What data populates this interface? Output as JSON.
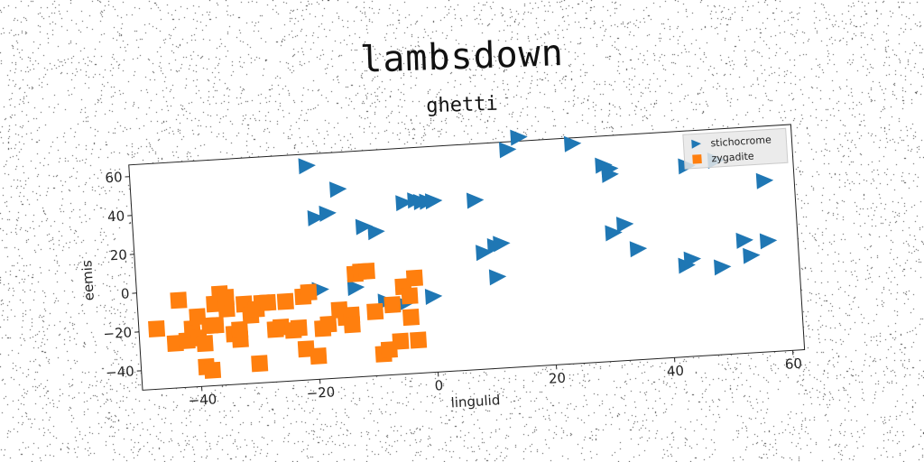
{
  "title": "lambsdown",
  "chart_data": {
    "type": "scatter",
    "title": "ghetti",
    "xlabel": "lingulid",
    "ylabel": "eemis",
    "xlim": [
      -50,
      62
    ],
    "ylim": [
      -50,
      66
    ],
    "xticks": [
      -40,
      -20,
      0,
      20,
      40,
      60
    ],
    "yticks": [
      -40,
      -20,
      0,
      20,
      40,
      60
    ],
    "grid": false,
    "legend_position": "top-right",
    "series": [
      {
        "name": "stichocrome",
        "marker": "triangle-right",
        "color": "#1f77b4",
        "points": [
          [
            -20,
            60
          ],
          [
            -15,
            47
          ],
          [
            -19,
            33
          ],
          [
            -17,
            35
          ],
          [
            -11,
            27
          ],
          [
            -9,
            24
          ],
          [
            -4,
            38
          ],
          [
            -2,
            39
          ],
          [
            -1,
            38
          ],
          [
            0,
            38
          ],
          [
            1,
            38
          ],
          [
            8,
            37
          ],
          [
            9,
            10
          ],
          [
            11,
            13
          ],
          [
            12,
            14
          ],
          [
            14,
            62
          ],
          [
            16,
            68
          ],
          [
            25,
            63
          ],
          [
            30,
            51
          ],
          [
            31,
            49
          ],
          [
            31,
            46
          ],
          [
            31,
            16
          ],
          [
            33,
            20
          ],
          [
            35,
            7
          ],
          [
            44,
            48
          ],
          [
            49,
            50
          ],
          [
            57,
            38
          ],
          [
            43,
            -3
          ],
          [
            44,
            0
          ],
          [
            49,
            -5
          ],
          [
            53,
            8
          ],
          [
            54,
            0
          ],
          [
            57,
            7
          ],
          [
            -19,
            -4
          ],
          [
            -13,
            -4
          ],
          [
            11,
            -3
          ],
          [
            0,
            -11
          ],
          [
            -8,
            -12
          ],
          [
            -5,
            -14
          ]
        ]
      },
      {
        "name": "zygadite",
        "marker": "square",
        "color": "#ff7f0e",
        "points": [
          [
            -47,
            -19
          ],
          [
            -44,
            -27
          ],
          [
            -43,
            -5
          ],
          [
            -42,
            -26
          ],
          [
            -41,
            -20
          ],
          [
            -40,
            -25
          ],
          [
            -40,
            -14
          ],
          [
            -39,
            -28
          ],
          [
            -39,
            -40
          ],
          [
            -38,
            -19
          ],
          [
            -38,
            -42
          ],
          [
            -37,
            -8
          ],
          [
            -37,
            -19
          ],
          [
            -36,
            -3
          ],
          [
            -35,
            -11
          ],
          [
            -35,
            -5
          ],
          [
            -34,
            -24
          ],
          [
            -33,
            -27
          ],
          [
            -33,
            -22
          ],
          [
            -32,
            -9
          ],
          [
            -31,
            -15
          ],
          [
            -30,
            -40
          ],
          [
            -30,
            -12
          ],
          [
            -29,
            -9
          ],
          [
            -28,
            -9
          ],
          [
            -27,
            -23
          ],
          [
            -26,
            -22
          ],
          [
            -25,
            -9
          ],
          [
            -24,
            -24
          ],
          [
            -23,
            -23
          ],
          [
            -22,
            -34
          ],
          [
            -22,
            -7
          ],
          [
            -21,
            -5
          ],
          [
            -20,
            -38
          ],
          [
            -19,
            -24
          ],
          [
            -18,
            -22
          ],
          [
            -16,
            -15
          ],
          [
            -15,
            -19
          ],
          [
            -14,
            -18
          ],
          [
            -14,
            -23
          ],
          [
            -13,
            3
          ],
          [
            -12,
            4
          ],
          [
            -11,
            4
          ],
          [
            -10,
            -17
          ],
          [
            -9,
            -39
          ],
          [
            -8,
            -37
          ],
          [
            -7,
            -14
          ],
          [
            -6,
            -33
          ],
          [
            -5,
            -5
          ],
          [
            -4,
            -21
          ],
          [
            -4,
            -10
          ],
          [
            -3,
            -1
          ],
          [
            -3,
            -33
          ]
        ]
      }
    ]
  }
}
